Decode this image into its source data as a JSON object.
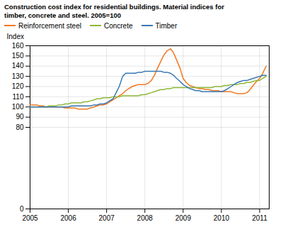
{
  "chart_data": {
    "type": "line",
    "title": "Construction cost index for residential buildings. Material indices for\ntimber, concrete and steel. 2005=100",
    "ylabel": "Index",
    "x": [
      2005.0,
      2005.08,
      2005.17,
      2005.25,
      2005.33,
      2005.42,
      2005.5,
      2005.58,
      2005.67,
      2005.75,
      2005.83,
      2005.92,
      2006.0,
      2006.08,
      2006.17,
      2006.25,
      2006.33,
      2006.42,
      2006.5,
      2006.58,
      2006.67,
      2006.75,
      2006.83,
      2006.92,
      2007.0,
      2007.08,
      2007.17,
      2007.25,
      2007.33,
      2007.42,
      2007.5,
      2007.58,
      2007.67,
      2007.75,
      2007.83,
      2007.92,
      2008.0,
      2008.08,
      2008.17,
      2008.25,
      2008.33,
      2008.42,
      2008.5,
      2008.58,
      2008.67,
      2008.75,
      2008.83,
      2008.92,
      2009.0,
      2009.08,
      2009.17,
      2009.25,
      2009.33,
      2009.42,
      2009.5,
      2009.58,
      2009.67,
      2009.75,
      2009.83,
      2009.92,
      2010.0,
      2010.08,
      2010.17,
      2010.25,
      2010.33,
      2010.42,
      2010.5,
      2010.58,
      2010.67,
      2010.75,
      2010.83,
      2010.92,
      2011.0,
      2011.08,
      2011.17
    ],
    "series": [
      {
        "name": "Reinforcement steel",
        "color": "#f07820",
        "values": [
          102,
          102,
          102,
          101,
          101,
          100,
          100,
          100,
          100,
          100,
          100,
          99,
          99,
          99,
          99,
          98,
          98,
          98,
          98,
          99,
          100,
          101,
          102,
          102,
          103,
          105,
          107,
          109,
          111,
          113,
          116,
          118,
          120,
          121,
          122,
          122,
          122,
          123,
          126,
          131,
          138,
          145,
          151,
          155,
          157,
          153,
          146,
          138,
          128,
          124,
          121,
          120,
          119,
          118,
          118,
          117,
          117,
          116,
          116,
          116,
          115,
          115,
          115,
          115,
          114,
          113,
          113,
          113,
          114,
          117,
          121,
          125,
          128,
          133,
          140
        ]
      },
      {
        "name": "Concrete",
        "color": "#8db83a",
        "values": [
          100,
          100,
          100,
          100,
          100,
          100,
          101,
          101,
          101,
          102,
          102,
          103,
          103,
          104,
          104,
          104,
          104,
          105,
          105,
          106,
          107,
          108,
          108,
          109,
          109,
          109,
          110,
          110,
          110,
          111,
          111,
          111,
          111,
          111,
          111,
          112,
          112,
          113,
          114,
          115,
          116,
          117,
          117,
          118,
          118,
          119,
          119,
          119,
          119,
          119,
          119,
          119,
          119,
          119,
          119,
          119,
          119,
          119,
          120,
          120,
          120,
          121,
          121,
          122,
          122,
          122,
          123,
          123,
          124,
          124,
          125,
          126,
          126,
          128,
          130
        ]
      },
      {
        "name": "Timber",
        "color": "#3a78b5",
        "values": [
          100,
          100,
          100,
          100,
          100,
          100,
          100,
          100,
          100,
          100,
          100,
          100,
          100,
          101,
          101,
          101,
          101,
          101,
          101,
          101,
          102,
          102,
          103,
          103,
          104,
          106,
          108,
          114,
          120,
          130,
          133,
          133,
          133,
          133,
          134,
          134,
          135,
          135,
          135,
          135,
          135,
          135,
          134,
          134,
          133,
          131,
          128,
          125,
          122,
          120,
          118,
          117,
          116,
          116,
          115,
          115,
          115,
          115,
          115,
          115,
          115,
          116,
          118,
          120,
          122,
          124,
          125,
          126,
          126,
          127,
          128,
          129,
          130,
          131,
          131
        ]
      }
    ],
    "xlim": [
      2005.0,
      2011.25
    ],
    "xticks": [
      2005,
      2006,
      2007,
      2008,
      2009,
      2010,
      2011
    ],
    "ylim": [
      0,
      160
    ],
    "yticks": [
      0,
      80,
      90,
      100,
      110,
      120,
      130,
      140,
      150,
      160
    ],
    "grid": true,
    "legend": "upper left"
  }
}
